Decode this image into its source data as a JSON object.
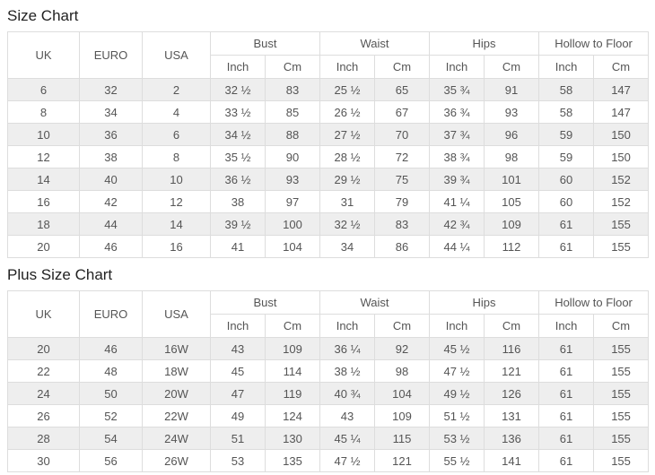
{
  "page": {
    "size_chart_title": "Size Chart",
    "plus_size_chart_title": "Plus Size Chart"
  },
  "headers": {
    "uk": "UK",
    "euro": "EURO",
    "usa": "USA",
    "measurement_groups": [
      "Bust",
      "Waist",
      "Hips",
      "Hollow to Floor"
    ],
    "unit_inch": "Inch",
    "unit_cm": "Cm"
  },
  "size_chart": {
    "columns": [
      "UK",
      "EURO",
      "USA",
      "Bust Inch",
      "Bust Cm",
      "Waist Inch",
      "Waist Cm",
      "Hips Inch",
      "Hips Cm",
      "Hollow to Floor Inch",
      "Hollow to Floor Cm"
    ],
    "rows": [
      [
        "6",
        "32",
        "2",
        "32 ½",
        "83",
        "25 ½",
        "65",
        "35 ¾",
        "91",
        "58",
        "147"
      ],
      [
        "8",
        "34",
        "4",
        "33 ½",
        "85",
        "26 ½",
        "67",
        "36 ¾",
        "93",
        "58",
        "147"
      ],
      [
        "10",
        "36",
        "6",
        "34 ½",
        "88",
        "27 ½",
        "70",
        "37 ¾",
        "96",
        "59",
        "150"
      ],
      [
        "12",
        "38",
        "8",
        "35 ½",
        "90",
        "28 ½",
        "72",
        "38 ¾",
        "98",
        "59",
        "150"
      ],
      [
        "14",
        "40",
        "10",
        "36 ½",
        "93",
        "29 ½",
        "75",
        "39 ¾",
        "101",
        "60",
        "152"
      ],
      [
        "16",
        "42",
        "12",
        "38",
        "97",
        "31",
        "79",
        "41 ¼",
        "105",
        "60",
        "152"
      ],
      [
        "18",
        "44",
        "14",
        "39 ½",
        "100",
        "32 ½",
        "83",
        "42 ¾",
        "109",
        "61",
        "155"
      ],
      [
        "20",
        "46",
        "16",
        "41",
        "104",
        "34",
        "86",
        "44 ¼",
        "112",
        "61",
        "155"
      ]
    ]
  },
  "plus_size_chart": {
    "columns": [
      "UK",
      "EURO",
      "USA",
      "Bust Inch",
      "Bust Cm",
      "Waist Inch",
      "Waist Cm",
      "Hips Inch",
      "Hips Cm",
      "Hollow to Floor Inch",
      "Hollow to Floor Cm"
    ],
    "rows": [
      [
        "20",
        "46",
        "16W",
        "43",
        "109",
        "36 ¼",
        "92",
        "45 ½",
        "116",
        "61",
        "155"
      ],
      [
        "22",
        "48",
        "18W",
        "45",
        "114",
        "38 ½",
        "98",
        "47 ½",
        "121",
        "61",
        "155"
      ],
      [
        "24",
        "50",
        "20W",
        "47",
        "119",
        "40 ¾",
        "104",
        "49 ½",
        "126",
        "61",
        "155"
      ],
      [
        "26",
        "52",
        "22W",
        "49",
        "124",
        "43",
        "109",
        "51 ½",
        "131",
        "61",
        "155"
      ],
      [
        "28",
        "54",
        "24W",
        "51",
        "130",
        "45 ¼",
        "115",
        "53 ½",
        "136",
        "61",
        "155"
      ],
      [
        "30",
        "56",
        "26W",
        "53",
        "135",
        "47 ½",
        "121",
        "55 ½",
        "141",
        "61",
        "155"
      ]
    ]
  },
  "colors": {
    "row_stripe": "#eeeeee",
    "border": "#dddddd",
    "cell_text": "#555555",
    "title_text": "#222222"
  }
}
